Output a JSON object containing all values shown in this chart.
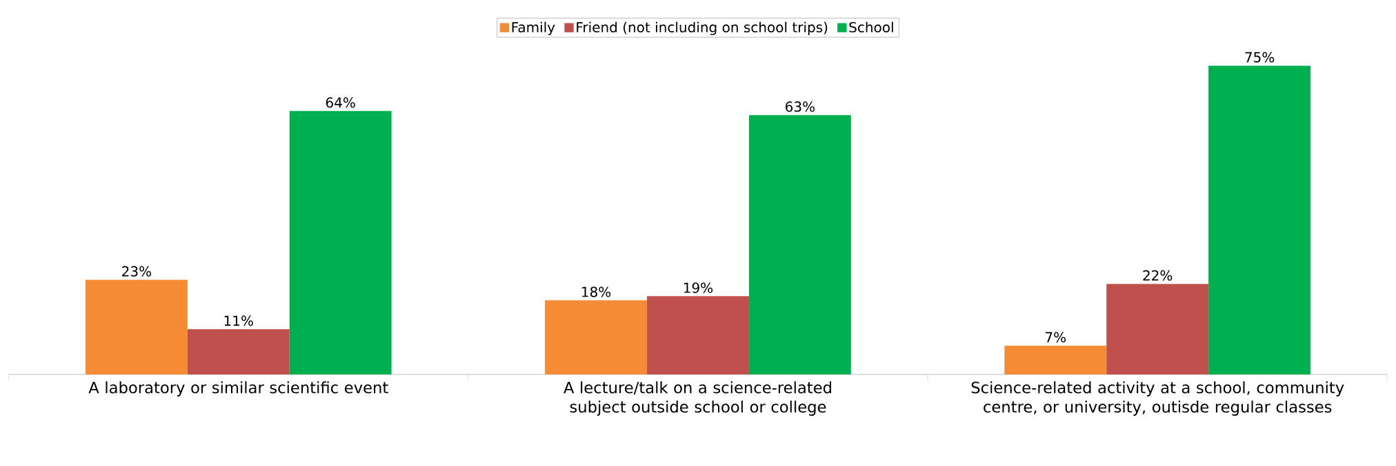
{
  "chart_data": {
    "type": "bar",
    "categories": [
      "A laboratory or similar scientific event",
      "A lecture/talk on a science-related subject outside school or college",
      "Science-related activity  at a school, community centre, or university, outisde regular classes"
    ],
    "series": [
      {
        "name": "Family",
        "color": "#f58b34",
        "values": [
          23,
          18,
          7
        ],
        "value_labels": [
          "23%",
          "18%",
          "7%"
        ]
      },
      {
        "name": "Friend (not including on school trips)",
        "color": "#c0504d",
        "values": [
          11,
          19,
          22
        ],
        "value_labels": [
          "11%",
          "19%",
          "22%"
        ]
      },
      {
        "name": "School",
        "color": "#00b050",
        "values": [
          64,
          63,
          75
        ],
        "value_labels": [
          "64%",
          "63%",
          "75%"
        ]
      }
    ],
    "legend": "top"
  }
}
